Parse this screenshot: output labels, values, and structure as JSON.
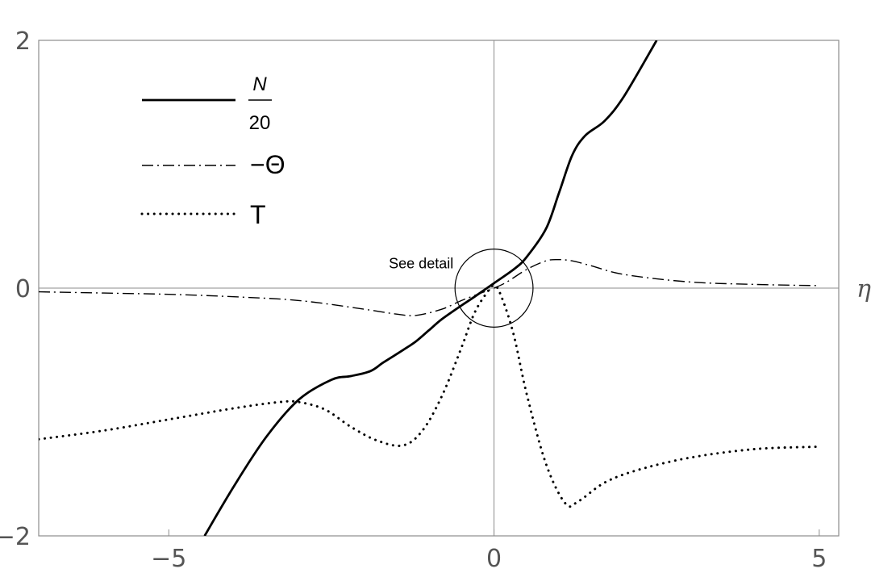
{
  "chart_data": {
    "type": "line",
    "xlabel": "η",
    "ylabel": "",
    "xlim": [
      -7,
      5.3
    ],
    "ylim": [
      -2,
      2
    ],
    "x_ticks": [
      -5,
      0,
      5
    ],
    "y_ticks": [
      -2,
      0,
      2
    ],
    "x_tick_labels": [
      "−5",
      "0",
      "5"
    ],
    "y_tick_labels": [
      "−2",
      "0",
      "2"
    ],
    "grid": false,
    "legend_position": "top-left",
    "annotation": {
      "text": "See detail",
      "at": [
        0,
        0
      ],
      "radius": 0.6
    },
    "series": [
      {
        "name": "N/20",
        "name_num": "N",
        "name_den": "20",
        "style": "solid",
        "x": [
          -4.45,
          -4.0,
          -3.5,
          -3.0,
          -2.5,
          -2.2,
          -1.9,
          -1.7,
          -1.4,
          -1.2,
          -1.0,
          -0.8,
          -0.5,
          -0.3,
          0.0,
          0.3,
          0.5,
          0.8,
          1.0,
          1.2,
          1.4,
          1.7,
          2.0,
          2.5
        ],
        "y": [
          -2.0,
          -1.6,
          -1.2,
          -0.9,
          -0.74,
          -0.71,
          -0.67,
          -0.6,
          -0.5,
          -0.43,
          -0.34,
          -0.25,
          -0.14,
          -0.07,
          0.04,
          0.15,
          0.25,
          0.48,
          0.77,
          1.07,
          1.23,
          1.35,
          1.55,
          2.0
        ]
      },
      {
        "name": "−Θ",
        "style": "dashdot",
        "x": [
          -7.0,
          -6.0,
          -5.0,
          -4.0,
          -3.0,
          -2.0,
          -1.5,
          -1.2,
          -0.8,
          -0.5,
          -0.2,
          0.0,
          0.2,
          0.5,
          0.8,
          1.0,
          1.2,
          1.5,
          2.0,
          3.0,
          4.0,
          5.0
        ],
        "y": [
          -0.03,
          -0.04,
          -0.05,
          -0.07,
          -0.1,
          -0.17,
          -0.21,
          -0.22,
          -0.17,
          -0.1,
          -0.04,
          0.0,
          0.05,
          0.15,
          0.22,
          0.23,
          0.22,
          0.18,
          0.11,
          0.05,
          0.03,
          0.02
        ]
      },
      {
        "name": "T",
        "style": "dotted",
        "x": [
          -7.0,
          -6.0,
          -5.0,
          -4.0,
          -3.3,
          -3.0,
          -2.6,
          -2.2,
          -1.8,
          -1.4,
          -1.1,
          -0.8,
          -0.5,
          -0.3,
          -0.1,
          0.0,
          0.1,
          0.3,
          0.5,
          0.8,
          1.1,
          1.3,
          1.7,
          2.2,
          3.0,
          4.0,
          5.0
        ],
        "y": [
          -1.22,
          -1.15,
          -1.06,
          -0.97,
          -0.92,
          -0.92,
          -0.98,
          -1.12,
          -1.23,
          -1.27,
          -1.15,
          -0.87,
          -0.48,
          -0.2,
          -0.03,
          0.02,
          -0.05,
          -0.37,
          -0.85,
          -1.42,
          -1.74,
          -1.72,
          -1.57,
          -1.47,
          -1.37,
          -1.3,
          -1.28
        ]
      }
    ]
  }
}
